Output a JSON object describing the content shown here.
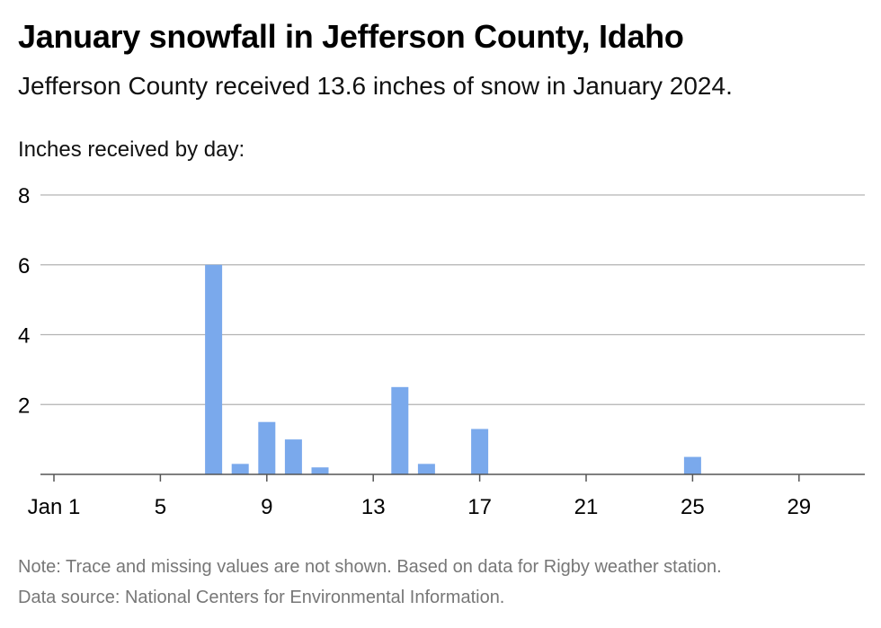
{
  "header": {
    "title": "January snowfall in Jefferson County, Idaho",
    "subtitle": "Jefferson County received 13.6 inches of snow in January 2024.",
    "axis_caption": "Inches received by day:"
  },
  "footer": {
    "note": "Note: Trace and missing values are not shown. Based on data for Rigby weather station.",
    "source": "Data source: National Centers for Environmental Information."
  },
  "colors": {
    "bar": "#7aa9ec",
    "grid": "#b3b3b3",
    "axis": "#555555",
    "text": "#000000",
    "footnote": "#777777"
  },
  "chart_data": {
    "type": "bar",
    "title": "January snowfall in Jefferson County, Idaho",
    "ylabel": "Inches received by day:",
    "xlabel": "",
    "ylim": [
      0,
      8
    ],
    "yticks": [
      2,
      4,
      6,
      8
    ],
    "xlim": [
      1,
      31
    ],
    "xticks": [
      {
        "day": 1,
        "label": "Jan 1"
      },
      {
        "day": 5,
        "label": "5"
      },
      {
        "day": 9,
        "label": "9"
      },
      {
        "day": 13,
        "label": "13"
      },
      {
        "day": 17,
        "label": "17"
      },
      {
        "day": 21,
        "label": "21"
      },
      {
        "day": 25,
        "label": "25"
      },
      {
        "day": 29,
        "label": "29"
      }
    ],
    "grid": true,
    "x": [
      7,
      8,
      9,
      10,
      11,
      14,
      15,
      17,
      25
    ],
    "values": [
      6.0,
      0.3,
      1.5,
      1.0,
      0.2,
      2.5,
      0.3,
      1.3,
      0.5
    ]
  }
}
